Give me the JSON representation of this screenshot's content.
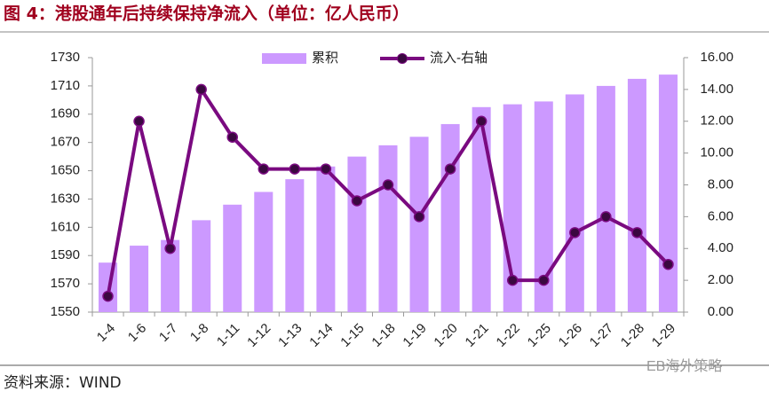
{
  "chart_data": {
    "type": "combo",
    "title": "图 4：港股通年后持续保持净流入（单位：亿人民币）",
    "source": "资料来源：WIND",
    "watermark": "EB海外策略",
    "categories": [
      "1-4",
      "1-6",
      "1-7",
      "1-8",
      "1-11",
      "1-12",
      "1-13",
      "1-14",
      "1-15",
      "1-18",
      "1-19",
      "1-20",
      "1-21",
      "1-22",
      "1-25",
      "1-26",
      "1-27",
      "1-28",
      "1-29"
    ],
    "series": [
      {
        "name": "累积",
        "type": "bar",
        "color": "#cc99ff",
        "axis": "y",
        "values": [
          1585,
          1597,
          1601,
          1615,
          1626,
          1635,
          1644,
          1653,
          1660,
          1668,
          1674,
          1683,
          1695,
          1697,
          1699,
          1704,
          1710,
          1715,
          1718
        ]
      },
      {
        "name": "流入-右轴",
        "type": "line",
        "color": "#7a0a80",
        "marker_color": "#3a0840",
        "axis": "y2",
        "values": [
          1,
          12,
          4,
          14,
          11,
          9,
          9,
          9,
          7,
          8,
          6,
          9,
          12,
          2,
          2,
          5,
          6,
          5,
          3
        ]
      }
    ],
    "ylim": [
      1550,
      1730
    ],
    "yticks": [
      1550,
      1570,
      1590,
      1610,
      1630,
      1650,
      1670,
      1690,
      1710,
      1730
    ],
    "y2lim": [
      0,
      16
    ],
    "y2ticks": [
      {
        "value": 0,
        "label": "0.00"
      },
      {
        "value": 2,
        "label": "2.00"
      },
      {
        "value": 4,
        "label": "4.00"
      },
      {
        "value": 6,
        "label": "6.00"
      },
      {
        "value": 8,
        "label": "8.00"
      },
      {
        "value": 10,
        "label": "10.00"
      },
      {
        "value": 12,
        "label": "12.00"
      },
      {
        "value": 14,
        "label": "14.00"
      },
      {
        "value": 16,
        "label": "16.00"
      }
    ],
    "grid": false,
    "legend": "top"
  }
}
